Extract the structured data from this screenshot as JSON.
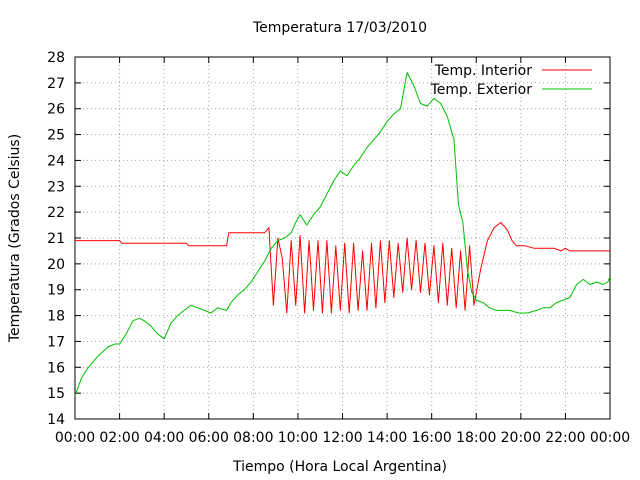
{
  "chart_data": {
    "type": "line",
    "title": "Temperatura 17/03/2010",
    "xlabel": "Tiempo (Hora Local Argentina)",
    "ylabel": "Temperatura (Grados Celsius)",
    "xlim": [
      0,
      24
    ],
    "ylim": [
      14,
      28
    ],
    "x_ticks": [
      "00:00",
      "02:00",
      "04:00",
      "06:00",
      "08:00",
      "10:00",
      "12:00",
      "14:00",
      "16:00",
      "18:00",
      "20:00",
      "22:00",
      "00:00"
    ],
    "y_ticks": [
      14,
      15,
      16,
      17,
      18,
      19,
      20,
      21,
      22,
      23,
      24,
      25,
      26,
      27,
      28
    ],
    "grid": true,
    "legend_position": "top-right",
    "x_unit": "hours",
    "series": [
      {
        "name": "Temp. Interior",
        "color": "#ff0000",
        "x": [
          0,
          2,
          2.1,
          4,
          4.1,
          5,
          5.1,
          6.8,
          6.9,
          8.5,
          8.7,
          8.9,
          9.1,
          9.3,
          9.5,
          9.7,
          9.9,
          10.1,
          10.3,
          10.5,
          10.7,
          10.9,
          11.1,
          11.3,
          11.5,
          11.7,
          11.9,
          12.1,
          12.3,
          12.5,
          12.7,
          12.9,
          13.1,
          13.3,
          13.5,
          13.7,
          13.9,
          14.1,
          14.3,
          14.5,
          14.7,
          14.9,
          15.1,
          15.3,
          15.5,
          15.7,
          15.9,
          16.1,
          16.3,
          16.5,
          16.7,
          16.9,
          17.1,
          17.3,
          17.5,
          17.7,
          17.9,
          18.2,
          18.5,
          18.8,
          19.1,
          19.4,
          19.6,
          19.8,
          20.2,
          20.6,
          21,
          21.5,
          21.8,
          22,
          22.2,
          22.4,
          23,
          24
        ],
        "y": [
          20.9,
          20.9,
          20.8,
          20.8,
          20.8,
          20.8,
          20.7,
          20.7,
          21.2,
          21.2,
          21.4,
          18.4,
          21,
          20.2,
          18.1,
          20.9,
          18.4,
          21.1,
          18.1,
          20.9,
          18.2,
          20.9,
          18.1,
          20.9,
          18.1,
          20.7,
          18.2,
          20.8,
          18.1,
          20.8,
          18.2,
          20.5,
          18.2,
          20.8,
          18.3,
          20.9,
          18.5,
          20.9,
          18.7,
          20.8,
          18.9,
          21,
          19,
          20.9,
          18.9,
          20.8,
          18.8,
          20.7,
          18.5,
          20.8,
          18.4,
          20.6,
          18.3,
          20.5,
          18.2,
          20.7,
          18.4,
          19.8,
          20.9,
          21.4,
          21.6,
          21.3,
          20.9,
          20.7,
          20.7,
          20.6,
          20.6,
          20.6,
          20.5,
          20.6,
          20.5,
          20.5,
          20.5,
          20.5
        ]
      },
      {
        "name": "Temp. Exterior",
        "color": "#00c000",
        "x": [
          0,
          0.3,
          0.6,
          1,
          1.5,
          1.8,
          2,
          2.3,
          2.6,
          2.9,
          3.1,
          3.4,
          3.7,
          4,
          4.3,
          4.6,
          4.9,
          5.2,
          5.5,
          5.8,
          6.1,
          6.4,
          6.8,
          7,
          7.3,
          7.6,
          7.9,
          8.2,
          8.5,
          8.8,
          9.1,
          9.4,
          9.7,
          9.9,
          10.1,
          10.4,
          10.7,
          11,
          11.3,
          11.6,
          11.9,
          12.2,
          12.5,
          12.8,
          13.1,
          13.4,
          13.7,
          14,
          14.3,
          14.6,
          14.9,
          15.2,
          15.5,
          15.8,
          16.1,
          16.4,
          16.7,
          17,
          17.2,
          17.4,
          17.6,
          17.8,
          18,
          18.3,
          18.6,
          18.9,
          19.2,
          19.5,
          19.9,
          20.3,
          20.7,
          21,
          21.3,
          21.6,
          21.9,
          22.2,
          22.5,
          22.8,
          23.1,
          23.4,
          23.7,
          23.9,
          24
        ],
        "y": [
          14.9,
          15.6,
          16,
          16.4,
          16.8,
          16.9,
          16.9,
          17.3,
          17.8,
          17.9,
          17.8,
          17.6,
          17.3,
          17.1,
          17.7,
          18,
          18.2,
          18.4,
          18.3,
          18.2,
          18.1,
          18.3,
          18.2,
          18.5,
          18.8,
          19,
          19.3,
          19.7,
          20.1,
          20.6,
          20.9,
          21.0,
          21.2,
          21.6,
          21.9,
          21.5,
          21.9,
          22.2,
          22.7,
          23.2,
          23.6,
          23.4,
          23.8,
          24.1,
          24.5,
          24.8,
          25.1,
          25.5,
          25.8,
          26.0,
          27.4,
          26.9,
          26.2,
          26.1,
          26.4,
          26.2,
          25.7,
          24.8,
          22.3,
          21.6,
          19.8,
          18.9,
          18.6,
          18.5,
          18.3,
          18.2,
          18.2,
          18.2,
          18.1,
          18.1,
          18.2,
          18.3,
          18.3,
          18.5,
          18.6,
          18.7,
          19.2,
          19.4,
          19.2,
          19.3,
          19.2,
          19.3,
          19.5
        ]
      }
    ]
  }
}
